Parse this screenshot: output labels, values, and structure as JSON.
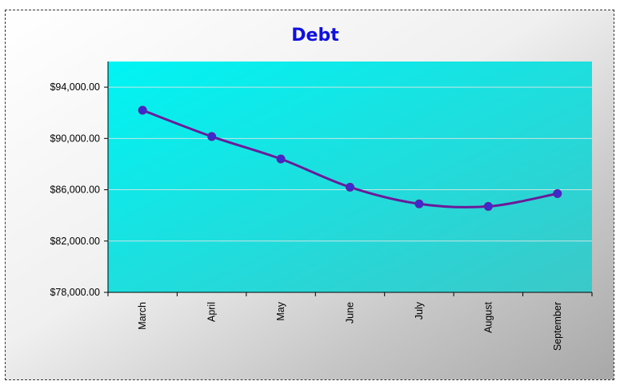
{
  "chart_data": {
    "type": "line",
    "title": "Debt",
    "xlabel": "",
    "ylabel": "",
    "categories": [
      "March",
      "April",
      "May",
      "June",
      "July",
      "August",
      "September"
    ],
    "series": [
      {
        "values": [
          92200,
          90150,
          88400,
          86200,
          84900,
          84700,
          85700
        ]
      }
    ],
    "ylim": [
      78000,
      96000
    ],
    "yticks": [
      78000,
      82000,
      86000,
      90000,
      94000
    ],
    "ytick_labels": [
      "$78,000.00",
      "$82,000.00",
      "$86,000.00",
      "$90,000.00",
      "$94,000.00"
    ],
    "grid": true,
    "legend": "none",
    "colors": {
      "line": "#6a1b9a",
      "marker": "#3a2bd0",
      "plot_bg_start": "#00f4f4",
      "plot_bg_end": "#3cc8c8",
      "gridline": "#c8e6e6",
      "title": "#1010e0"
    }
  }
}
